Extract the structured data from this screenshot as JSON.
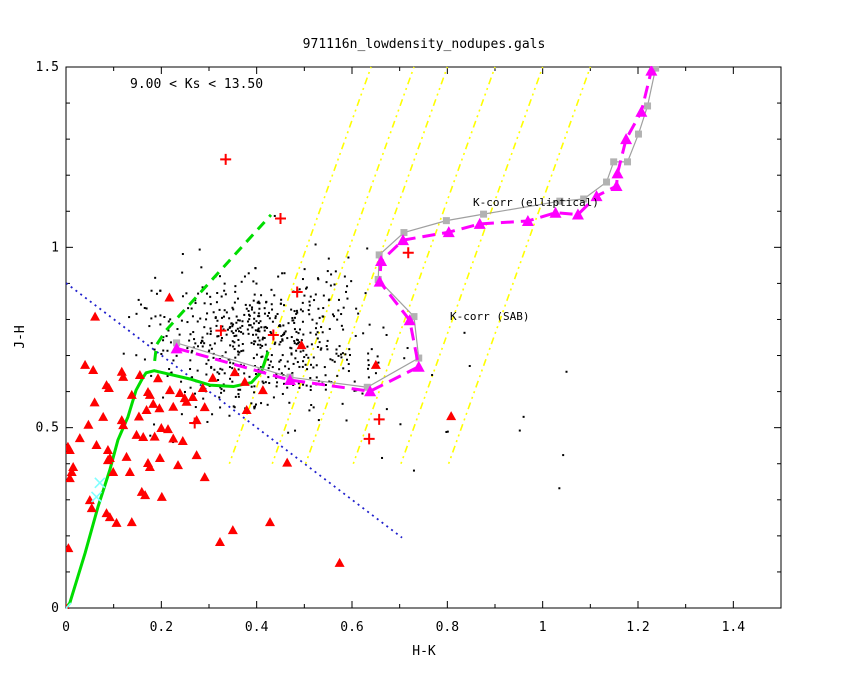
{
  "title": "971116n_lowdensity_nodupes.gals",
  "annotation": "9.00 < Ks <  13.50",
  "axes": {
    "xlabel": "H-K",
    "ylabel": "J-H",
    "xlim": [
      0,
      1.5
    ],
    "ylim": [
      0,
      1.5
    ],
    "xtick_major_step": 0.2,
    "xtick_minor_step": 0.1,
    "ytick_major_step": 0.5,
    "ytick_minor_step": 0.1,
    "xtick_labels": [
      "0",
      "0.2",
      "0.4",
      "0.6",
      "0.8",
      "1",
      "1.2",
      "1.4"
    ],
    "ytick_labels": [
      "0",
      "0.5",
      "1",
      "1.5"
    ]
  },
  "legend_elliptical": {
    "label": "K-corr (elliptical)",
    "color": "#9e9e9e"
  },
  "legend_sab": {
    "label": "K-corr (SAB)",
    "color": "#ff00ff"
  },
  "colors": {
    "background": "#ffffff",
    "axis": "#000000",
    "galaxies_dots": "#000000",
    "red_markers": "#ff0000",
    "green_tracks": "#00dd00",
    "kcorr_elliptical_line": "#a0a0a0",
    "kcorr_elliptical_marker": "#b2b2b2",
    "kcorr_sab": "#ff00ff",
    "yellow_guides": "#ffff00",
    "blue_guide": "#2020cc",
    "cyan_markers": "#80ffff"
  },
  "chart_data": {
    "type": "scatter",
    "title": "971116n_lowdensity_nodupes.gals",
    "xlabel": "H-K",
    "ylabel": "J-H",
    "xlim": [
      0,
      1.5
    ],
    "ylim": [
      0,
      1.5
    ],
    "grid": false,
    "series": [
      {
        "name": "galaxy-dots",
        "marker": "dot",
        "color": "#000000",
        "cluster_generator": {
          "seed": 7,
          "n_cluster": 560,
          "center": [
            0.41,
            0.745
          ],
          "sigma": [
            0.115,
            0.09
          ],
          "n_uniform": 30,
          "uniform_x": [
            0.16,
            0.74
          ],
          "uniform_y": [
            0.46,
            1.03
          ],
          "clip_x": [
            0.12,
            0.8
          ],
          "clip_y": [
            0.44,
            1.12
          ]
        },
        "outliers": [
          [
            0.438,
            1.087
          ],
          [
            0.466,
            0.486
          ],
          [
            0.663,
            0.416
          ],
          [
            0.73,
            0.381
          ],
          [
            0.798,
            0.488
          ],
          [
            0.836,
            0.763
          ],
          [
            0.847,
            0.671
          ],
          [
            0.768,
            0.646
          ],
          [
            1.05,
            0.655
          ],
          [
            0.952,
            0.492
          ],
          [
            0.801,
            0.489
          ],
          [
            1.043,
            0.424
          ],
          [
            1.035,
            0.332
          ],
          [
            0.96,
            0.53
          ]
        ]
      },
      {
        "name": "red-triangles",
        "marker": "triangle",
        "color": "#ff0000",
        "points": [
          [
            0.0,
            0.0
          ],
          [
            0.04,
            0.674
          ],
          [
            0.057,
            0.66
          ],
          [
            0.117,
            0.655
          ],
          [
            0.12,
            0.641
          ],
          [
            0.085,
            0.618
          ],
          [
            0.09,
            0.61
          ],
          [
            0.155,
            0.646
          ],
          [
            0.172,
            0.599
          ],
          [
            0.176,
            0.591
          ],
          [
            0.138,
            0.591
          ],
          [
            0.218,
            0.604
          ],
          [
            0.239,
            0.596
          ],
          [
            0.249,
            0.582
          ],
          [
            0.253,
            0.572
          ],
          [
            0.266,
            0.585
          ],
          [
            0.287,
            0.61
          ],
          [
            0.291,
            0.557
          ],
          [
            0.308,
            0.638
          ],
          [
            0.354,
            0.654
          ],
          [
            0.375,
            0.627
          ],
          [
            0.413,
            0.604
          ],
          [
            0.379,
            0.549
          ],
          [
            0.169,
            0.549
          ],
          [
            0.078,
            0.53
          ],
          [
            0.117,
            0.521
          ],
          [
            0.12,
            0.507
          ],
          [
            0.148,
            0.48
          ],
          [
            0.162,
            0.474
          ],
          [
            0.2,
            0.499
          ],
          [
            0.214,
            0.496
          ],
          [
            0.274,
            0.521
          ],
          [
            0.274,
            0.424
          ],
          [
            0.291,
            0.363
          ],
          [
            0.004,
            0.447
          ],
          [
            0.008,
            0.438
          ],
          [
            0.029,
            0.471
          ],
          [
            0.064,
            0.452
          ],
          [
            0.088,
            0.438
          ],
          [
            0.092,
            0.416
          ],
          [
            0.015,
            0.391
          ],
          [
            0.012,
            0.377
          ],
          [
            0.008,
            0.36
          ],
          [
            0.088,
            0.41
          ],
          [
            0.099,
            0.377
          ],
          [
            0.127,
            0.419
          ],
          [
            0.134,
            0.377
          ],
          [
            0.172,
            0.402
          ],
          [
            0.176,
            0.391
          ],
          [
            0.197,
            0.416
          ],
          [
            0.235,
            0.396
          ],
          [
            0.159,
            0.322
          ],
          [
            0.166,
            0.313
          ],
          [
            0.201,
            0.308
          ],
          [
            0.05,
            0.299
          ],
          [
            0.054,
            0.277
          ],
          [
            0.085,
            0.263
          ],
          [
            0.092,
            0.252
          ],
          [
            0.106,
            0.236
          ],
          [
            0.138,
            0.238
          ],
          [
            0.428,
            0.238
          ],
          [
            0.35,
            0.216
          ],
          [
            0.323,
            0.183
          ],
          [
            0.574,
            0.125
          ],
          [
            0.005,
            0.166
          ],
          [
            0.217,
            0.861
          ],
          [
            0.061,
            0.808
          ],
          [
            0.808,
            0.532
          ],
          [
            0.65,
            0.674
          ],
          [
            0.494,
            0.729
          ],
          [
            0.464,
            0.403
          ],
          [
            0.183,
            0.566
          ],
          [
            0.196,
            0.554
          ],
          [
            0.225,
            0.558
          ],
          [
            0.153,
            0.531
          ],
          [
            0.186,
            0.475
          ],
          [
            0.225,
            0.47
          ],
          [
            0.245,
            0.463
          ],
          [
            0.047,
            0.508
          ],
          [
            0.06,
            0.57
          ],
          [
            0.193,
            0.637
          ]
        ]
      },
      {
        "name": "red-plusses",
        "marker": "plus",
        "color": "#ff0000",
        "points": [
          [
            0.335,
            1.244
          ],
          [
            0.45,
            1.08
          ],
          [
            0.718,
            0.985
          ],
          [
            0.485,
            0.876
          ],
          [
            0.325,
            0.769
          ],
          [
            0.435,
            0.757
          ],
          [
            0.27,
            0.513
          ],
          [
            0.657,
            0.523
          ],
          [
            0.636,
            0.469
          ]
        ]
      },
      {
        "name": "cyan-crosses",
        "marker": "x",
        "color": "#80ffff",
        "points": [
          [
            0.0,
            0.0
          ],
          [
            0.071,
            0.347
          ],
          [
            0.064,
            0.308
          ]
        ]
      },
      {
        "name": "kcorr-elliptical",
        "type": "line+marker",
        "marker": "square",
        "line_color": "#a0a0a0",
        "marker_color": "#b2b2b2",
        "points": [
          [
            0.232,
            0.735
          ],
          [
            0.47,
            0.64
          ],
          [
            0.632,
            0.612
          ],
          [
            0.74,
            0.693
          ],
          [
            0.73,
            0.808
          ],
          [
            0.655,
            0.911
          ],
          [
            0.657,
            0.979
          ],
          [
            0.709,
            1.041
          ],
          [
            0.798,
            1.074
          ],
          [
            0.876,
            1.092
          ],
          [
            1.036,
            1.128
          ],
          [
            1.086,
            1.134
          ],
          [
            1.134,
            1.181
          ],
          [
            1.149,
            1.237
          ],
          [
            1.178,
            1.237
          ],
          [
            1.201,
            1.314
          ],
          [
            1.22,
            1.392
          ],
          [
            1.237,
            1.497
          ]
        ]
      },
      {
        "name": "kcorr-sab",
        "type": "line+marker",
        "dashed": true,
        "marker": "triangle",
        "color": "#ff00ff",
        "points": [
          [
            0.232,
            0.72
          ],
          [
            0.47,
            0.632
          ],
          [
            0.638,
            0.601
          ],
          [
            0.74,
            0.669
          ],
          [
            0.721,
            0.798
          ],
          [
            0.658,
            0.905
          ],
          [
            0.661,
            0.962
          ],
          [
            0.707,
            1.02
          ],
          [
            0.803,
            1.042
          ],
          [
            0.868,
            1.065
          ],
          [
            0.969,
            1.073
          ],
          [
            1.027,
            1.096
          ],
          [
            1.074,
            1.091
          ],
          [
            1.113,
            1.142
          ],
          [
            1.155,
            1.17
          ],
          [
            1.157,
            1.205
          ],
          [
            1.175,
            1.3
          ],
          [
            1.207,
            1.376
          ],
          [
            1.228,
            1.49
          ]
        ]
      },
      {
        "name": "green-locus-solid",
        "type": "line",
        "color": "#00dd00",
        "points": [
          [
            0.0,
            0.0
          ],
          [
            0.008,
            0.014
          ],
          [
            0.04,
            0.152
          ],
          [
            0.067,
            0.28
          ],
          [
            0.092,
            0.383
          ],
          [
            0.109,
            0.466
          ],
          [
            0.13,
            0.53
          ],
          [
            0.147,
            0.604
          ],
          [
            0.161,
            0.638
          ],
          [
            0.168,
            0.652
          ],
          [
            0.185,
            0.658
          ],
          [
            0.204,
            0.652
          ],
          [
            0.26,
            0.635
          ],
          [
            0.302,
            0.618
          ],
          [
            0.351,
            0.614
          ],
          [
            0.389,
            0.625
          ],
          [
            0.41,
            0.655
          ],
          [
            0.424,
            0.711
          ]
        ]
      },
      {
        "name": "green-locus-dashed",
        "type": "line",
        "dashed": true,
        "color": "#00dd00",
        "points": [
          [
            0.186,
            0.685
          ],
          [
            0.19,
            0.73
          ],
          [
            0.21,
            0.77
          ],
          [
            0.43,
            1.09
          ]
        ]
      },
      {
        "name": "blue-dotted-guide",
        "type": "line",
        "dotted": true,
        "color": "#2020cc",
        "points": [
          [
            0.0,
            0.901
          ],
          [
            0.705,
            0.195
          ]
        ]
      },
      {
        "name": "yellow-dotted-guides",
        "type": "parallel-lines",
        "dotted": true,
        "color": "#ffff00",
        "x_at_top": [
          0.64,
          0.73,
          0.8,
          0.9,
          1.0,
          1.1
        ],
        "slope": 3.7,
        "y_range": [
          0.4,
          1.5
        ]
      }
    ]
  }
}
